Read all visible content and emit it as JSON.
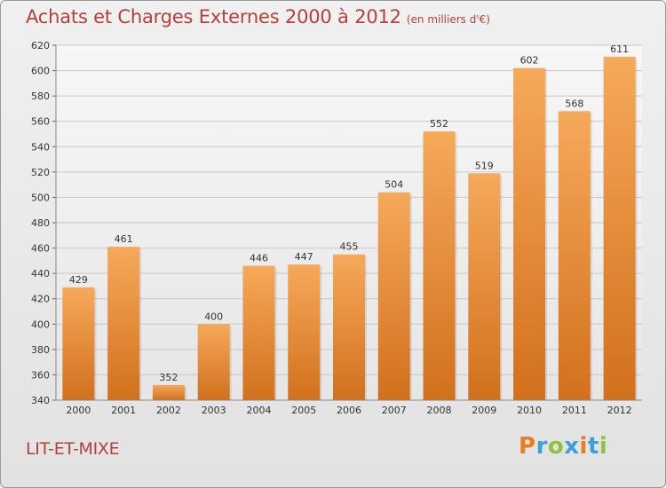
{
  "title": "Achats et Charges Externes 2000 à 2012",
  "subtitle": "(en milliers d'€)",
  "place": "LIT-ET-MIXE",
  "logo": {
    "text": "Proxiti",
    "letters": [
      "P",
      "r",
      "o",
      "x",
      "i",
      "t",
      "i"
    ],
    "colors": [
      "#e67e22",
      "#3aa0d8",
      "#8cc43e",
      "#3aa0d8",
      "#e67e22",
      "#3aa0d8",
      "#8cc43e"
    ]
  },
  "colors": {
    "title": "#b5403a",
    "bar_top": "#f6a95a",
    "bar_bottom": "#d2701d",
    "axis_text": "#333333"
  },
  "chart_data": {
    "type": "bar",
    "categories": [
      "2000",
      "2001",
      "2002",
      "2003",
      "2004",
      "2005",
      "2006",
      "2007",
      "2008",
      "2009",
      "2010",
      "2011",
      "2012"
    ],
    "values": [
      429,
      461,
      352,
      400,
      446,
      447,
      455,
      504,
      552,
      519,
      602,
      568,
      611
    ],
    "data_labels": [
      "429",
      "461",
      "352",
      "400",
      "446",
      "447",
      "455",
      "504",
      "552",
      "519",
      "602",
      "568",
      "611"
    ],
    "y_ticks": [
      "340",
      "360",
      "380",
      "400",
      "420",
      "440",
      "460",
      "480",
      "500",
      "520",
      "540",
      "560",
      "580",
      "600",
      "620"
    ],
    "ylim": [
      340,
      620
    ],
    "grid": true,
    "xlabel": "",
    "ylabel": ""
  }
}
